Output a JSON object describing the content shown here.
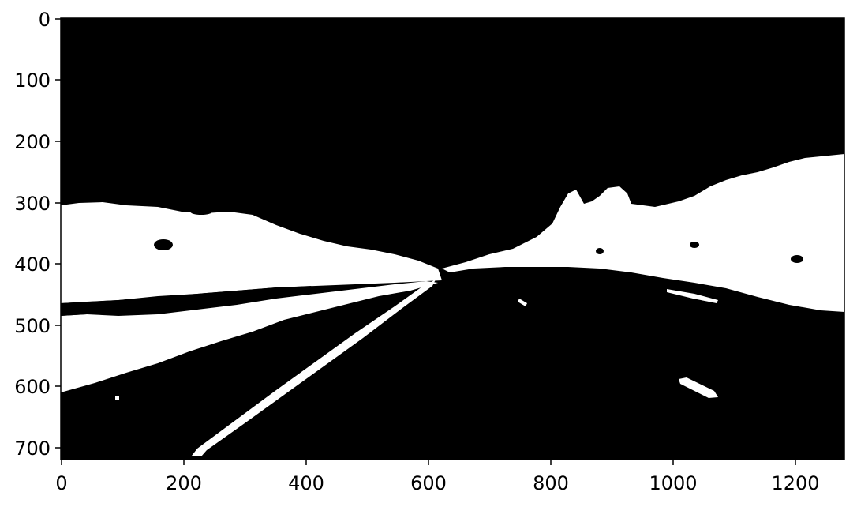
{
  "image": {
    "description_colors": {
      "background": "#000000",
      "mask": "#ffffff",
      "frame": "#000000"
    },
    "axes": {
      "x_ticks": [
        "0",
        "200",
        "400",
        "600",
        "800",
        "1000",
        "1200"
      ],
      "y_ticks": [
        "0",
        "100",
        "200",
        "300",
        "400",
        "500",
        "600",
        "700"
      ],
      "xlim": [
        0,
        1280
      ],
      "ylim": [
        720,
        0
      ]
    }
  }
}
